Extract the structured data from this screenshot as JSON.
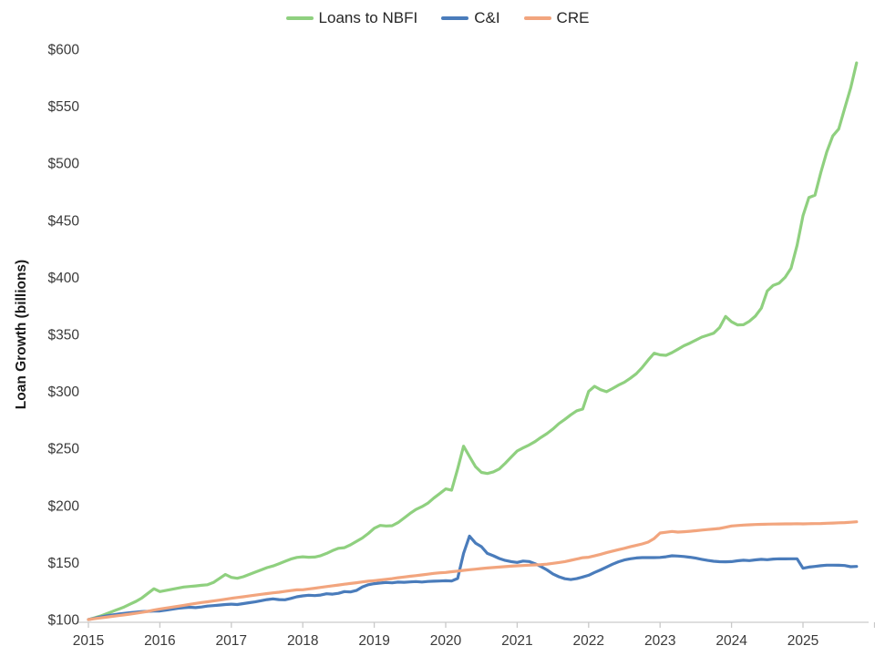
{
  "chart_data": {
    "type": "line",
    "title": "",
    "frequency": "monthly",
    "period_start": "2015-01",
    "period_end": "2025-10",
    "y_axis": {
      "title": "Loan Growth (billions)",
      "min": 100,
      "max": 600,
      "tick_step": 50,
      "ticks": [
        100,
        150,
        200,
        250,
        300,
        350,
        400,
        450,
        500,
        550,
        600
      ],
      "tick_prefix": "$"
    },
    "x_axis": {
      "years": [
        "2015",
        "2016",
        "2017",
        "2018",
        "2019",
        "2020",
        "2021",
        "2022",
        "2023",
        "2024",
        "2025"
      ]
    },
    "grid": false,
    "legend_position": "top-center",
    "axis_color": "#c9c9c9",
    "label_color": "#3a3a3a",
    "series": [
      {
        "name": "Loans to NBFI",
        "color": "#8fd07f",
        "values": [
          100,
          101.5,
          103,
          105,
          107,
          109,
          111,
          113.5,
          116,
          119,
          123,
          127,
          124.5,
          125.5,
          126.5,
          127.5,
          128.5,
          129,
          129.5,
          130,
          130.5,
          132.5,
          136,
          139.5,
          137,
          136.2,
          137.5,
          139.5,
          141.5,
          143.5,
          145.5,
          147,
          149,
          151,
          153,
          154.5,
          155,
          154.6,
          154.8,
          156,
          158,
          160.5,
          162.5,
          163,
          165.5,
          168.5,
          171.5,
          175.5,
          180,
          182.5,
          182,
          182.3,
          185,
          189,
          193,
          196.5,
          199,
          202,
          206.5,
          210.5,
          214.5,
          213.4,
          232,
          252,
          243,
          234,
          229,
          228,
          229.5,
          232,
          237,
          242.5,
          247.8,
          250.5,
          253,
          256,
          259.7,
          263,
          267,
          271.7,
          275.5,
          279.5,
          283,
          284.5,
          300,
          304.5,
          301.5,
          299.8,
          302.5,
          305.5,
          308,
          311.5,
          315.5,
          321,
          327.5,
          333.5,
          332,
          331.6,
          334,
          337,
          340,
          342.3,
          345,
          347.6,
          349.3,
          351,
          356,
          365.7,
          361,
          358.3,
          358.5,
          361.5,
          366,
          373,
          388,
          393,
          395,
          400,
          408,
          428,
          454,
          470,
          472,
          492,
          510,
          524,
          530,
          548,
          566,
          588
        ]
      },
      {
        "name": "C&I",
        "color": "#4a7cbb",
        "values": [
          100,
          101,
          102.2,
          103.2,
          104,
          104.8,
          105.4,
          106,
          106.5,
          107,
          107.2,
          107.4,
          107.5,
          108.2,
          109,
          109.8,
          110.4,
          110.8,
          110.5,
          111,
          111.8,
          112.2,
          112.7,
          113.2,
          113.5,
          113.2,
          114,
          114.8,
          115.5,
          116.5,
          117.5,
          118.1,
          117.5,
          117.3,
          118.5,
          120,
          120.8,
          121.3,
          121,
          121.5,
          122.6,
          122.3,
          123,
          124.5,
          124.2,
          125.5,
          128.5,
          130.5,
          131.5,
          132,
          132.5,
          132.2,
          132.8,
          132.7,
          133,
          133.3,
          132.9,
          133.4,
          133.6,
          133.8,
          134,
          133.8,
          136,
          158,
          173.2,
          167,
          163.9,
          158,
          155.9,
          153.5,
          151.8,
          150.8,
          150.1,
          151.3,
          150.9,
          149,
          146.5,
          143.5,
          140,
          137.5,
          135.8,
          135.1,
          135.9,
          137.3,
          138.8,
          141.3,
          143.5,
          146,
          148.5,
          150.6,
          152.2,
          153.3,
          154,
          154.3,
          154.3,
          154.3,
          154.5,
          155,
          155.9,
          155.7,
          155.3,
          154.6,
          153.8,
          152.8,
          151.8,
          151.1,
          150.7,
          150.6,
          150.8,
          151.5,
          152,
          151.7,
          152.3,
          152.8,
          152.5,
          153,
          153.3,
          153.2,
          153.3,
          153.3,
          145,
          146,
          146.6,
          147.2,
          147.7,
          147.7,
          147.6,
          147.4,
          146.3,
          146.6
        ]
      },
      {
        "name": "CRE",
        "color": "#f2a57e",
        "values": [
          100,
          100.7,
          101.4,
          102.1,
          102.8,
          103.4,
          104.1,
          104.8,
          105.5,
          106.3,
          107.2,
          108.3,
          109.3,
          110.1,
          110.9,
          111.7,
          112.5,
          113.3,
          114.1,
          114.9,
          115.6,
          116.3,
          117,
          117.8,
          118.6,
          119.3,
          120,
          120.7,
          121.4,
          122.1,
          122.8,
          123.4,
          124,
          124.7,
          125.4,
          126,
          126.1,
          126.8,
          127.5,
          128.2,
          128.9,
          129.6,
          130.3,
          131,
          131.6,
          132.3,
          133,
          133.6,
          134.1,
          134.7,
          135.3,
          135.9,
          136.7,
          137.3,
          137.9,
          138.5,
          139.1,
          139.8,
          140.5,
          141,
          141.3,
          141.9,
          142.5,
          143.1,
          143.7,
          144.2,
          144.7,
          145.2,
          145.6,
          146,
          146.4,
          146.8,
          147.1,
          147.4,
          147.7,
          147.9,
          148.2,
          148.6,
          149.3,
          150,
          150.8,
          151.9,
          153,
          154.2,
          154.6,
          155.8,
          157.2,
          158.6,
          160,
          161.3,
          162.5,
          163.8,
          165,
          166.3,
          167.9,
          171,
          175.9,
          176.5,
          177.2,
          176.7,
          177,
          177.4,
          177.9,
          178.4,
          178.9,
          179.4,
          179.9,
          180.9,
          182,
          182.4,
          182.8,
          183.1,
          183.3,
          183.5,
          183.6,
          183.7,
          183.8,
          183.9,
          183.9,
          184,
          183.9,
          184,
          184.1,
          184.2,
          184.4,
          184.6,
          184.8,
          185,
          185.3,
          185.7
        ]
      }
    ]
  }
}
